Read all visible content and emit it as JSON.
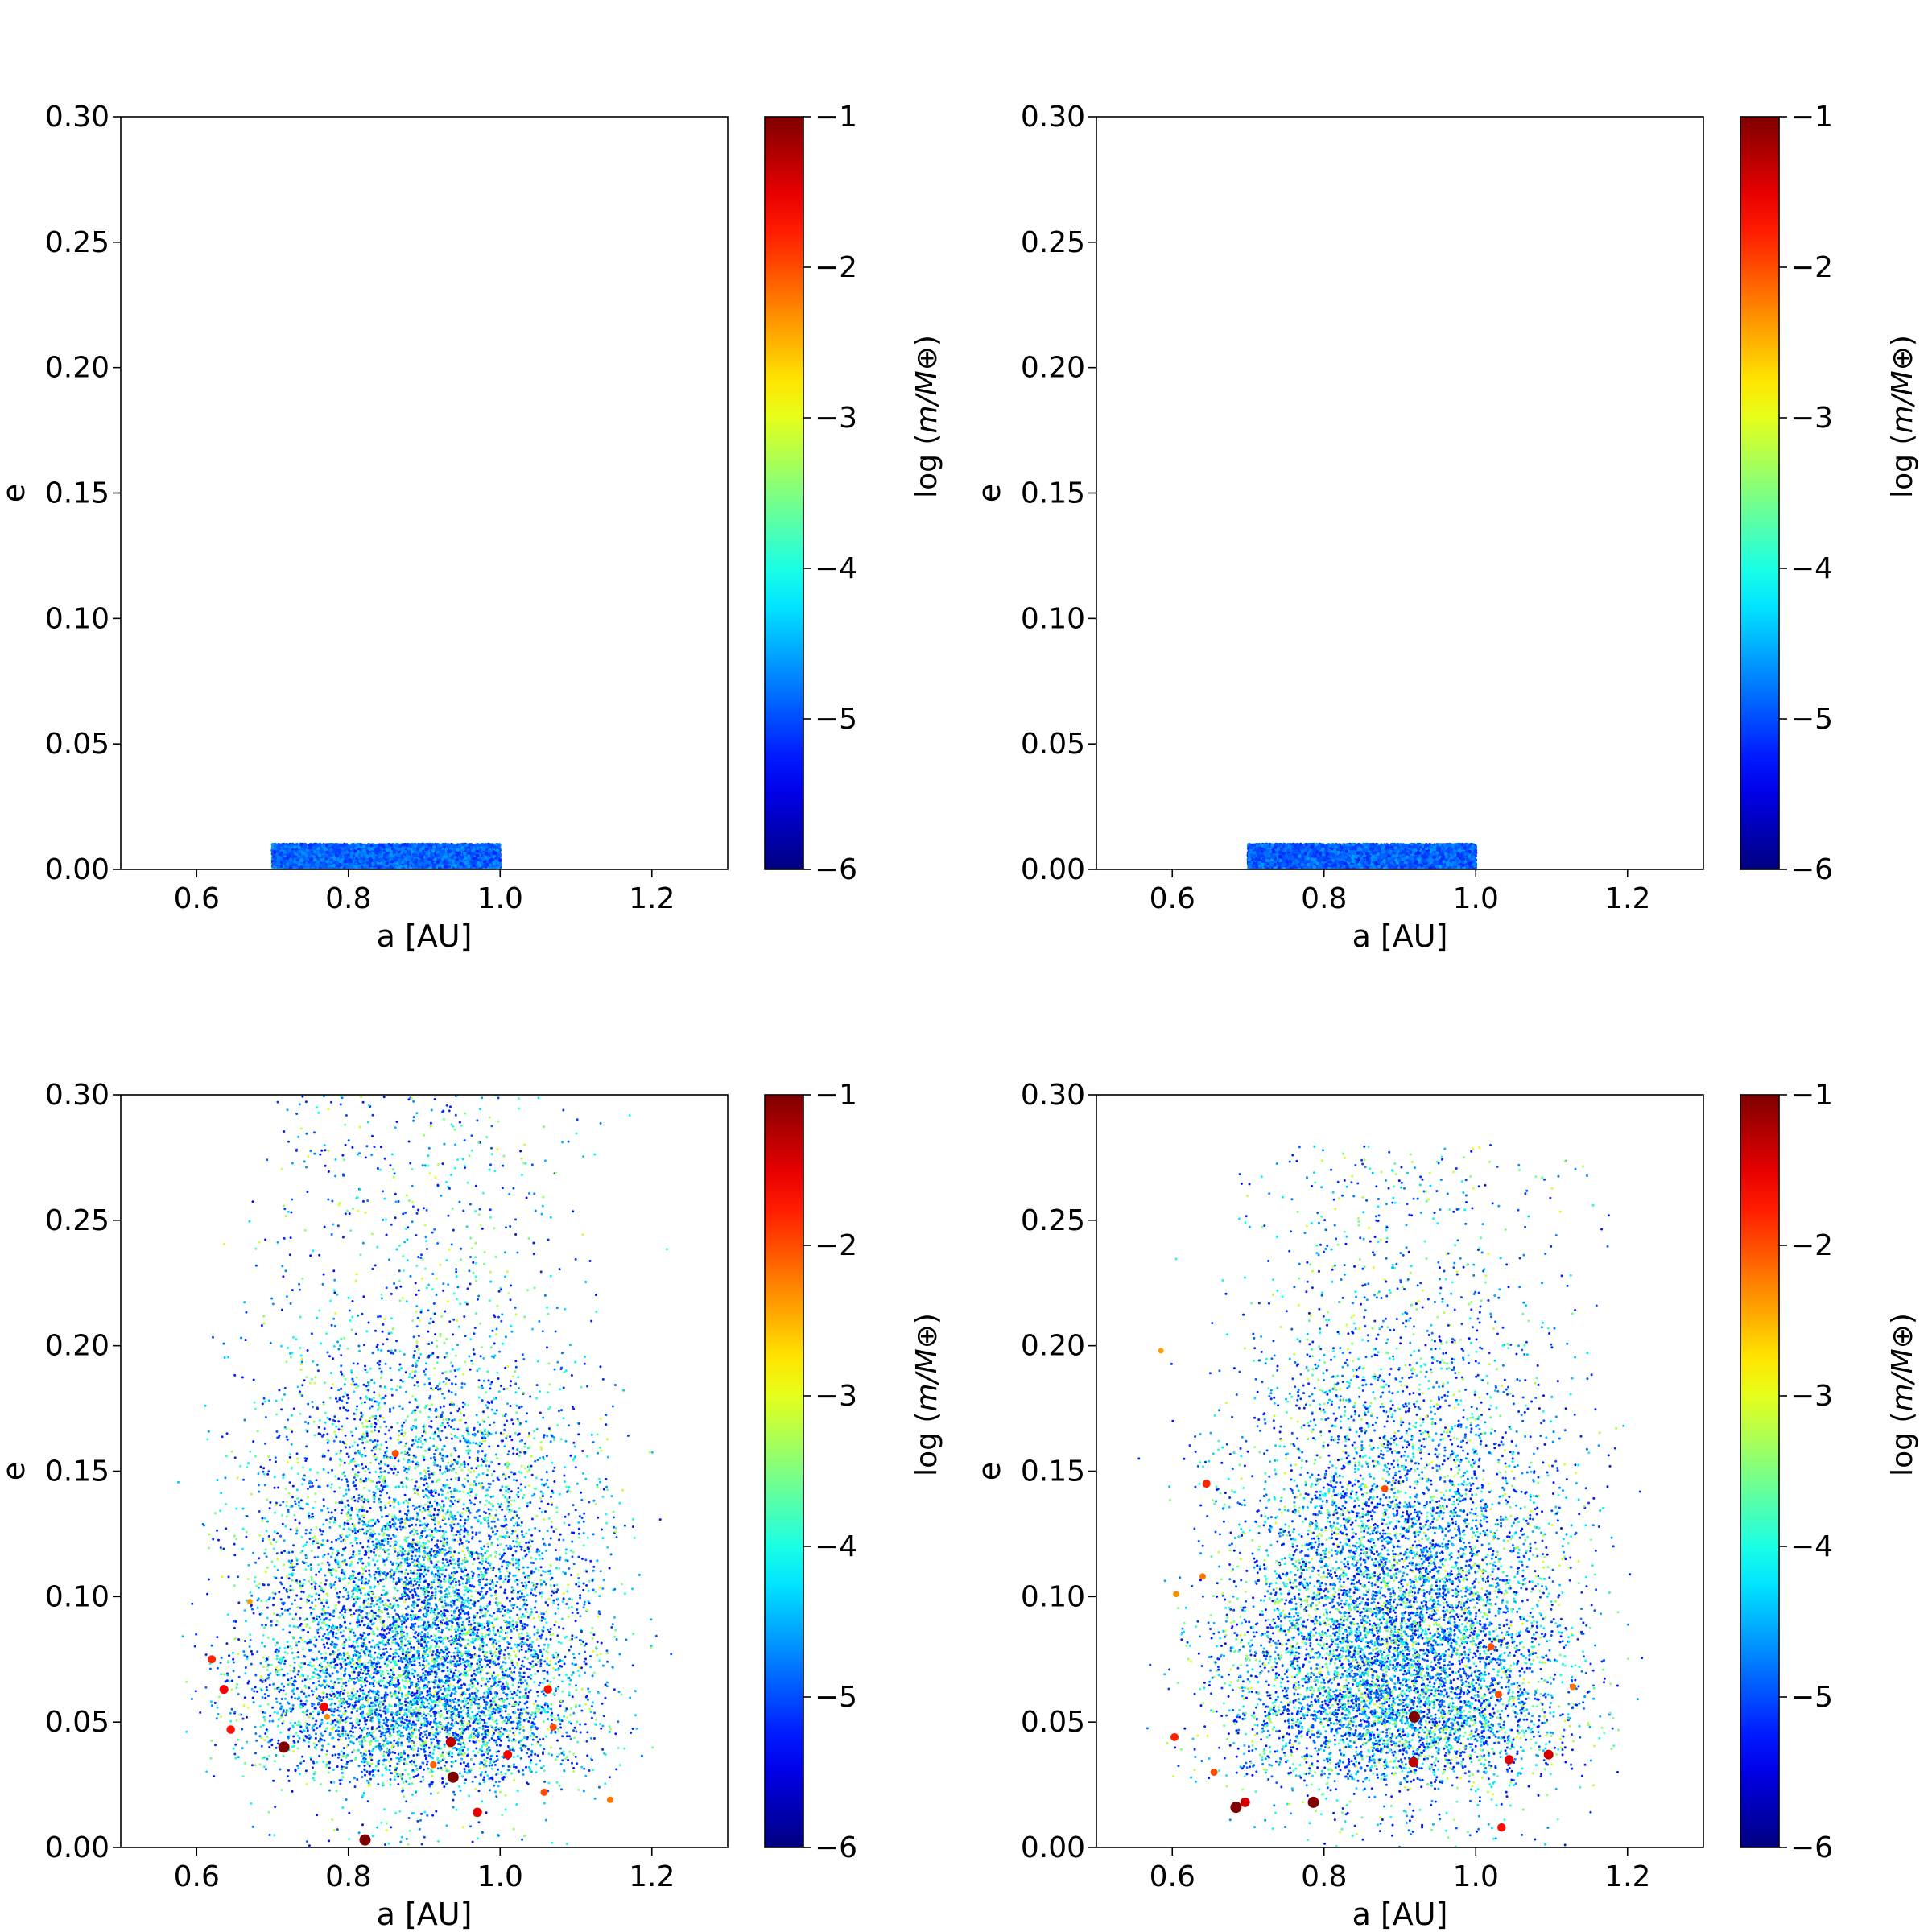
{
  "chart_data": [
    {
      "type": "scatter",
      "panel": "top-left",
      "xlabel": "a [AU]",
      "ylabel": "e",
      "xlim": [
        0.5,
        1.3
      ],
      "ylim": [
        0.0,
        0.3
      ],
      "xticks": [
        "0.6",
        "0.8",
        "1.0",
        "1.2"
      ],
      "yticks": [
        "0.00",
        "0.05",
        "0.10",
        "0.15",
        "0.20",
        "0.25",
        "0.30"
      ],
      "colorbar": {
        "label": "log (m/M⊕)",
        "range": [
          -6,
          -1
        ],
        "ticks": [
          "−6",
          "−5",
          "−4",
          "−3",
          "−2",
          "−1"
        ],
        "colormap": "jet"
      },
      "distribution": {
        "a_range": [
          0.7,
          1.0
        ],
        "e_range": [
          0.0,
          0.01
        ],
        "log_mass_range": [
          -5.5,
          -3.0
        ],
        "points": 6000
      },
      "highlight_points": []
    },
    {
      "type": "scatter",
      "panel": "top-right",
      "xlabel": "a [AU]",
      "ylabel": "e",
      "xlim": [
        0.5,
        1.3
      ],
      "ylim": [
        0.0,
        0.3
      ],
      "xticks": [
        "0.6",
        "0.8",
        "1.0",
        "1.2"
      ],
      "yticks": [
        "0.00",
        "0.05",
        "0.10",
        "0.15",
        "0.20",
        "0.25",
        "0.30"
      ],
      "colorbar": {
        "label": "log (m/M⊕)",
        "range": [
          -6,
          -1
        ],
        "ticks": [
          "−6",
          "−5",
          "−4",
          "−3",
          "−2",
          "−1"
        ],
        "colormap": "jet"
      },
      "distribution": {
        "a_range": [
          0.7,
          1.0
        ],
        "e_range": [
          0.0,
          0.01
        ],
        "log_mass_range": [
          -5.5,
          -3.0
        ],
        "points": 6000
      },
      "highlight_points": []
    },
    {
      "type": "scatter",
      "panel": "bottom-left",
      "xlabel": "a [AU]",
      "ylabel": "e",
      "xlim": [
        0.5,
        1.3
      ],
      "ylim": [
        0.0,
        0.3
      ],
      "xticks": [
        "0.6",
        "0.8",
        "1.0",
        "1.2"
      ],
      "yticks": [
        "0.00",
        "0.05",
        "0.10",
        "0.15",
        "0.20",
        "0.25",
        "0.30"
      ],
      "colorbar": {
        "label": "log (m/M⊕)",
        "range": [
          -6,
          -1
        ],
        "ticks": [
          "−6",
          "−5",
          "−4",
          "−3",
          "−2",
          "−1"
        ],
        "colormap": "jet"
      },
      "distribution": {
        "a_range": [
          0.57,
          1.22
        ],
        "e_range": [
          0.0,
          0.3
        ],
        "log_mass_range": [
          -5.3,
          -3.0
        ],
        "points": 9000
      },
      "highlight_points": [
        {
          "a": 0.715,
          "e": 0.04,
          "logm": -1.0
        },
        {
          "a": 0.822,
          "e": 0.003,
          "logm": -1.0
        },
        {
          "a": 0.938,
          "e": 0.028,
          "logm": -1.0
        },
        {
          "a": 0.935,
          "e": 0.042,
          "logm": -1.3
        },
        {
          "a": 0.636,
          "e": 0.063,
          "logm": -1.6
        },
        {
          "a": 0.645,
          "e": 0.047,
          "logm": -1.7
        },
        {
          "a": 0.768,
          "e": 0.056,
          "logm": -1.6
        },
        {
          "a": 0.97,
          "e": 0.014,
          "logm": -1.5
        },
        {
          "a": 1.063,
          "e": 0.063,
          "logm": -1.7
        },
        {
          "a": 1.01,
          "e": 0.037,
          "logm": -1.6
        },
        {
          "a": 0.62,
          "e": 0.075,
          "logm": -1.8
        },
        {
          "a": 0.862,
          "e": 0.157,
          "logm": -2.0
        },
        {
          "a": 1.058,
          "e": 0.022,
          "logm": -2.0
        },
        {
          "a": 1.145,
          "e": 0.019,
          "logm": -2.2
        },
        {
          "a": 0.912,
          "e": 0.033,
          "logm": -2.1
        },
        {
          "a": 1.07,
          "e": 0.048,
          "logm": -2.0
        },
        {
          "a": 0.772,
          "e": 0.052,
          "logm": -2.3
        },
        {
          "a": 0.67,
          "e": 0.098,
          "logm": -2.4
        }
      ]
    },
    {
      "type": "scatter",
      "panel": "bottom-right",
      "xlabel": "a [AU]",
      "ylabel": "e",
      "xlim": [
        0.5,
        1.3
      ],
      "ylim": [
        0.0,
        0.3
      ],
      "xticks": [
        "0.6",
        "0.8",
        "1.0",
        "1.2"
      ],
      "yticks": [
        "0.00",
        "0.05",
        "0.10",
        "0.15",
        "0.20",
        "0.25",
        "0.30"
      ],
      "colorbar": {
        "label": "log (m/M⊕)",
        "range": [
          -6,
          -1
        ],
        "ticks": [
          "−6",
          "−5",
          "−4",
          "−3",
          "−2",
          "−1"
        ],
        "colormap": "jet"
      },
      "distribution": {
        "a_range": [
          0.57,
          1.22
        ],
        "e_range": [
          0.0,
          0.28
        ],
        "log_mass_range": [
          -5.3,
          -3.0
        ],
        "points": 9000
      },
      "highlight_points": [
        {
          "a": 0.684,
          "e": 0.016,
          "logm": -1.0
        },
        {
          "a": 0.786,
          "e": 0.018,
          "logm": -1.0
        },
        {
          "a": 0.919,
          "e": 0.052,
          "logm": -1.0
        },
        {
          "a": 0.696,
          "e": 0.018,
          "logm": -1.4
        },
        {
          "a": 0.918,
          "e": 0.034,
          "logm": -1.3
        },
        {
          "a": 1.044,
          "e": 0.035,
          "logm": -1.5
        },
        {
          "a": 1.096,
          "e": 0.037,
          "logm": -1.4
        },
        {
          "a": 1.034,
          "e": 0.008,
          "logm": -1.7
        },
        {
          "a": 0.645,
          "e": 0.145,
          "logm": -1.8
        },
        {
          "a": 0.603,
          "e": 0.044,
          "logm": -1.8
        },
        {
          "a": 0.88,
          "e": 0.143,
          "logm": -2.0
        },
        {
          "a": 1.03,
          "e": 0.061,
          "logm": -2.0
        },
        {
          "a": 1.02,
          "e": 0.08,
          "logm": -2.0
        },
        {
          "a": 0.64,
          "e": 0.108,
          "logm": -2.2
        },
        {
          "a": 0.605,
          "e": 0.101,
          "logm": -2.3
        },
        {
          "a": 0.655,
          "e": 0.03,
          "logm": -2.0
        },
        {
          "a": 1.128,
          "e": 0.064,
          "logm": -2.2
        },
        {
          "a": 0.585,
          "e": 0.198,
          "logm": -2.4
        }
      ]
    }
  ]
}
